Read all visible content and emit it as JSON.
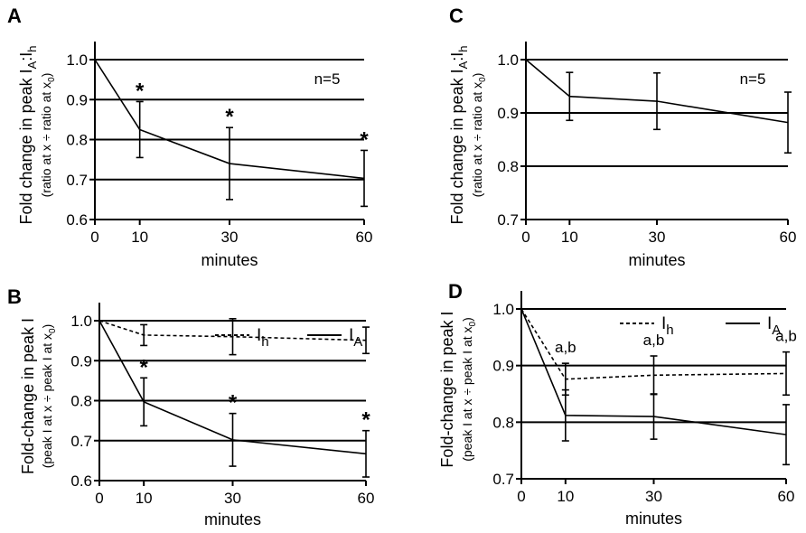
{
  "chart_data": [
    {
      "id": "A",
      "panel_label": "A",
      "type": "line",
      "ylabel_main": "Fold change in peak I",
      "ylabel_sub": "(ratio at x ÷  ratio at x",
      "ylabel_main_sub": "A",
      "ylabel_colon": ":I",
      "ylabel_main_sub2": "h",
      "ylabel_sub_sub": "0",
      "ylabel_close": ")",
      "xlabel": "minutes",
      "x_ticks": [
        0,
        10,
        30,
        60
      ],
      "y_ticks": [
        0.6,
        0.7,
        0.8,
        0.9,
        1.0
      ],
      "y_tick_labels": [
        "0.6",
        "0.7",
        "0.8",
        "0.9",
        "1.0"
      ],
      "xlim": [
        0,
        60
      ],
      "ylim": [
        0.6,
        1.0
      ],
      "gridlines": [
        0.7,
        0.8,
        0.9,
        1.0
      ],
      "annotation": "n=5",
      "series": [
        {
          "name": "IA:Ih",
          "style": "solid",
          "x": [
            0,
            10,
            30,
            60
          ],
          "y": [
            1.0,
            0.825,
            0.74,
            0.703
          ],
          "err": [
            0,
            0.07,
            0.09,
            0.07
          ],
          "markers": [
            "",
            "*",
            "*",
            "*"
          ]
        }
      ]
    },
    {
      "id": "B",
      "panel_label": "B",
      "type": "line",
      "ylabel_main": "Fold-change in peak I",
      "ylabel_sub": "(peak I at x ÷ peak I at x",
      "ylabel_sub_sub": "0",
      "ylabel_close": ")",
      "xlabel": "minutes",
      "x_ticks": [
        0,
        10,
        30,
        60
      ],
      "y_ticks": [
        0.6,
        0.7,
        0.8,
        0.9,
        1.0
      ],
      "y_tick_labels": [
        "0.6",
        "0.7",
        "0.8",
        "0.9",
        "1.0"
      ],
      "xlim": [
        0,
        60
      ],
      "ylim": [
        0.6,
        1.0
      ],
      "gridlines": [
        0.7,
        0.8,
        0.9,
        1.0
      ],
      "legend": [
        {
          "label": "I",
          "sub": "h",
          "style": "dashed"
        },
        {
          "label": "I",
          "sub": "A",
          "style": "solid"
        }
      ],
      "series": [
        {
          "name": "Ih",
          "style": "dashed",
          "x": [
            0,
            10,
            30,
            60
          ],
          "y": [
            1.0,
            0.964,
            0.96,
            0.951
          ],
          "err": [
            0,
            0.026,
            0.045,
            0.033
          ],
          "markers": [
            "",
            "",
            "",
            ""
          ]
        },
        {
          "name": "IA",
          "style": "solid",
          "x": [
            0,
            10,
            30,
            60
          ],
          "y": [
            1.0,
            0.797,
            0.702,
            0.667
          ],
          "err": [
            0,
            0.06,
            0.066,
            0.058
          ],
          "markers": [
            "",
            "*",
            "*",
            "*"
          ]
        }
      ]
    },
    {
      "id": "C",
      "panel_label": "C",
      "type": "line",
      "ylabel_main": "Fold change in peak I",
      "ylabel_sub": "(ratio at x ÷  ratio at x",
      "ylabel_main_sub": "A",
      "ylabel_colon": ":I",
      "ylabel_main_sub2": "h",
      "ylabel_sub_sub": "0",
      "ylabel_close": ")",
      "xlabel": "minutes",
      "x_ticks": [
        0,
        10,
        30,
        60
      ],
      "y_ticks": [
        0.7,
        0.8,
        0.9,
        1.0
      ],
      "y_tick_labels": [
        "0.7",
        "0.8",
        "0.9",
        "1.0"
      ],
      "xlim": [
        0,
        60
      ],
      "ylim": [
        0.7,
        1.0
      ],
      "gridlines": [
        0.8,
        0.9,
        1.0
      ],
      "annotation": "n=5",
      "series": [
        {
          "name": "IA:Ih",
          "style": "solid",
          "x": [
            0,
            10,
            30,
            60
          ],
          "y": [
            1.0,
            0.931,
            0.922,
            0.882
          ],
          "err": [
            0,
            0.045,
            0.053,
            0.057
          ],
          "markers": [
            "",
            "",
            "",
            ""
          ]
        }
      ]
    },
    {
      "id": "D",
      "panel_label": "D",
      "type": "line",
      "ylabel_main": "Fold-change in peak I",
      "ylabel_sub": "(peak I at x ÷ peak I at x",
      "ylabel_sub_sub": "0",
      "ylabel_close": ")",
      "xlabel": "minutes",
      "x_ticks": [
        0,
        10,
        30,
        60
      ],
      "y_ticks": [
        0.7,
        0.8,
        0.9,
        1.0
      ],
      "y_tick_labels": [
        "0.7",
        "0.8",
        "0.9",
        "1.0"
      ],
      "xlim": [
        0,
        60
      ],
      "ylim": [
        0.7,
        1.0
      ],
      "gridlines": [
        0.8,
        0.9,
        1.0
      ],
      "legend": [
        {
          "label": "I",
          "sub": "h",
          "style": "dashed"
        },
        {
          "label": "I",
          "sub": "A",
          "style": "solid"
        }
      ],
      "series": [
        {
          "name": "Ih",
          "style": "dashed",
          "x": [
            0,
            10,
            30,
            60
          ],
          "y": [
            1.0,
            0.876,
            0.883,
            0.886
          ],
          "err": [
            0,
            0.028,
            0.034,
            0.038
          ],
          "markers": [
            "",
            "a,b",
            "a,b",
            "a,b"
          ]
        },
        {
          "name": "IA",
          "style": "solid",
          "x": [
            0,
            10,
            30,
            60
          ],
          "y": [
            1.0,
            0.812,
            0.81,
            0.778
          ],
          "err": [
            0,
            0.045,
            0.04,
            0.053
          ],
          "markers": [
            "",
            "",
            "",
            ""
          ]
        }
      ]
    }
  ]
}
